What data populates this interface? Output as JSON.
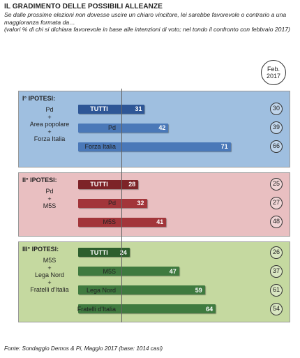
{
  "title": "IL GRADIMENTO DELLE POSSIBILI ALLEANZE",
  "subtitle": "Se dalle prossime elezioni non dovesse uscire un chiaro vincitore, lei sarebbe favorevole o contrario a una maggioranza formata da…",
  "note": "(valori % di chi si dichiara favorevole in base alle intenzioni di voto; nel tondo il confronto con febbraio 2017)",
  "feb_label": {
    "line1": "Feb.",
    "line2": "2017"
  },
  "footer": "Fonte: Sondaggio Demos & Pi, Maggio 2017 (base: 1014 casi)",
  "colors": {
    "panel1_bg": "#9fbfe0",
    "panel1_bar": "#4a78b8",
    "panel1_tutti": "#2e5696",
    "panel2_bg": "#e9bfc1",
    "panel2_bar": "#a2353a",
    "panel2_tutti": "#7d2328",
    "panel3_bg": "#c5d9a0",
    "panel3_bar": "#3f7a3f",
    "panel3_tutti": "#2d5e2d"
  },
  "chart_data": {
    "type": "bar",
    "orientation": "horizontal",
    "xlim": [
      0,
      100
    ],
    "groups": [
      {
        "hypothesis": "I° IPOTESI:",
        "parties": [
          "Pd",
          "+",
          "Area popolare",
          "+",
          "Forza Italia"
        ],
        "rows": [
          {
            "label": "TUTTI",
            "value": 31,
            "feb2017": 30
          },
          {
            "label": "Pd",
            "value": 42,
            "feb2017": 39
          },
          {
            "label": "Forza Italia",
            "value": 71,
            "feb2017": 66
          }
        ]
      },
      {
        "hypothesis": "II° IPOTESI:",
        "parties": [
          "Pd",
          "+",
          "M5S"
        ],
        "rows": [
          {
            "label": "TUTTI",
            "value": 28,
            "feb2017": 25
          },
          {
            "label": "Pd",
            "value": 32,
            "feb2017": 27
          },
          {
            "label": "M5S",
            "value": 41,
            "feb2017": 48
          }
        ]
      },
      {
        "hypothesis": "III° IPOTESI:",
        "parties": [
          "M5S",
          "+",
          "Lega Nord",
          "+",
          "Fratelli d'Italia"
        ],
        "rows": [
          {
            "label": "TUTTI",
            "value": 24,
            "feb2017": 26
          },
          {
            "label": "M5S",
            "value": 47,
            "feb2017": 37
          },
          {
            "label": "Lega Nord",
            "value": 59,
            "feb2017": 61
          },
          {
            "label": "Fratelli d'Italia",
            "value": 64,
            "feb2017": 54
          }
        ]
      }
    ]
  }
}
